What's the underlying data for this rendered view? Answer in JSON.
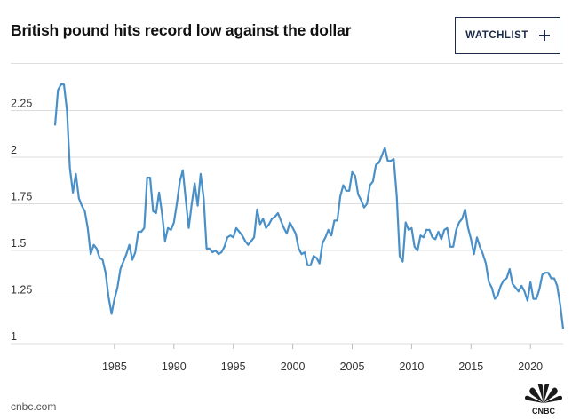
{
  "header": {
    "title": "British pound hits record low against the dollar",
    "watchlist_label": "WATCHLIST"
  },
  "footer": {
    "source": "cnbc.com",
    "logo_text": "CNBC"
  },
  "colors": {
    "line": "#4a90c8",
    "grid": "#dcdcdc",
    "button_border": "#1e2a4a"
  },
  "icons": [
    "plus-icon",
    "cnbc-peacock-logo"
  ],
  "chart_data": {
    "type": "line",
    "title": "British pound hits record low against the dollar",
    "xlabel": "",
    "ylabel": "",
    "xlim": [
      1980.0,
      2022.75
    ],
    "ylim": [
      1.0,
      2.5
    ],
    "y_ticks": [
      1,
      1.25,
      1.5,
      1.75,
      2,
      2.25
    ],
    "y_tick_labels": [
      "1",
      "1.25",
      "1.5",
      "1.75",
      "2",
      "2.25"
    ],
    "x_ticks": [
      1985,
      1990,
      1995,
      2000,
      2005,
      2010,
      2015,
      2020
    ],
    "x_tick_labels": [
      "1985",
      "1990",
      "1995",
      "2000",
      "2005",
      "2010",
      "2015",
      "2020"
    ],
    "grid": "horizontal",
    "series": [
      {
        "points": [
          [
            1980.0,
            2.17
          ],
          [
            1980.25,
            2.36
          ],
          [
            1980.5,
            2.39
          ],
          [
            1980.75,
            2.39
          ],
          [
            1981.0,
            2.25
          ],
          [
            1981.25,
            1.94
          ],
          [
            1981.5,
            1.81
          ],
          [
            1981.75,
            1.91
          ],
          [
            1982.0,
            1.78
          ],
          [
            1982.25,
            1.74
          ],
          [
            1982.5,
            1.71
          ],
          [
            1982.75,
            1.62
          ],
          [
            1983.0,
            1.48
          ],
          [
            1983.25,
            1.53
          ],
          [
            1983.5,
            1.51
          ],
          [
            1983.75,
            1.46
          ],
          [
            1984.0,
            1.45
          ],
          [
            1984.25,
            1.38
          ],
          [
            1984.5,
            1.25
          ],
          [
            1984.75,
            1.16
          ],
          [
            1985.0,
            1.24
          ],
          [
            1985.25,
            1.3
          ],
          [
            1985.5,
            1.4
          ],
          [
            1985.75,
            1.44
          ],
          [
            1986.0,
            1.48
          ],
          [
            1986.25,
            1.53
          ],
          [
            1986.5,
            1.45
          ],
          [
            1986.75,
            1.49
          ],
          [
            1987.0,
            1.6
          ],
          [
            1987.25,
            1.6
          ],
          [
            1987.5,
            1.62
          ],
          [
            1987.75,
            1.89
          ],
          [
            1988.0,
            1.89
          ],
          [
            1988.25,
            1.71
          ],
          [
            1988.5,
            1.7
          ],
          [
            1988.75,
            1.81
          ],
          [
            1989.0,
            1.7
          ],
          [
            1989.25,
            1.55
          ],
          [
            1989.5,
            1.62
          ],
          [
            1989.75,
            1.61
          ],
          [
            1990.0,
            1.65
          ],
          [
            1990.25,
            1.75
          ],
          [
            1990.5,
            1.87
          ],
          [
            1990.75,
            1.93
          ],
          [
            1991.0,
            1.77
          ],
          [
            1991.25,
            1.62
          ],
          [
            1991.5,
            1.75
          ],
          [
            1991.75,
            1.86
          ],
          [
            1992.0,
            1.74
          ],
          [
            1992.25,
            1.91
          ],
          [
            1992.5,
            1.78
          ],
          [
            1992.75,
            1.51
          ],
          [
            1993.0,
            1.51
          ],
          [
            1993.25,
            1.49
          ],
          [
            1993.5,
            1.5
          ],
          [
            1993.75,
            1.48
          ],
          [
            1994.0,
            1.49
          ],
          [
            1994.25,
            1.52
          ],
          [
            1994.5,
            1.57
          ],
          [
            1994.75,
            1.58
          ],
          [
            1995.0,
            1.57
          ],
          [
            1995.25,
            1.62
          ],
          [
            1995.5,
            1.6
          ],
          [
            1995.75,
            1.58
          ],
          [
            1996.0,
            1.55
          ],
          [
            1996.25,
            1.53
          ],
          [
            1996.5,
            1.55
          ],
          [
            1996.75,
            1.57
          ],
          [
            1997.0,
            1.72
          ],
          [
            1997.25,
            1.64
          ],
          [
            1997.5,
            1.67
          ],
          [
            1997.75,
            1.62
          ],
          [
            1998.0,
            1.64
          ],
          [
            1998.25,
            1.67
          ],
          [
            1998.5,
            1.68
          ],
          [
            1998.75,
            1.7
          ],
          [
            1999.0,
            1.66
          ],
          [
            1999.25,
            1.62
          ],
          [
            1999.5,
            1.59
          ],
          [
            1999.75,
            1.65
          ],
          [
            2000.0,
            1.62
          ],
          [
            2000.25,
            1.59
          ],
          [
            2000.5,
            1.51
          ],
          [
            2000.75,
            1.48
          ],
          [
            2001.0,
            1.49
          ],
          [
            2001.25,
            1.42
          ],
          [
            2001.5,
            1.42
          ],
          [
            2001.75,
            1.47
          ],
          [
            2002.0,
            1.46
          ],
          [
            2002.25,
            1.43
          ],
          [
            2002.5,
            1.54
          ],
          [
            2002.75,
            1.57
          ],
          [
            2003.0,
            1.61
          ],
          [
            2003.25,
            1.58
          ],
          [
            2003.5,
            1.66
          ],
          [
            2003.75,
            1.66
          ],
          [
            2004.0,
            1.79
          ],
          [
            2004.25,
            1.85
          ],
          [
            2004.5,
            1.82
          ],
          [
            2004.75,
            1.82
          ],
          [
            2005.0,
            1.92
          ],
          [
            2005.25,
            1.9
          ],
          [
            2005.5,
            1.8
          ],
          [
            2005.75,
            1.77
          ],
          [
            2006.0,
            1.73
          ],
          [
            2006.25,
            1.75
          ],
          [
            2006.5,
            1.85
          ],
          [
            2006.75,
            1.87
          ],
          [
            2007.0,
            1.96
          ],
          [
            2007.25,
            1.97
          ],
          [
            2007.5,
            2.01
          ],
          [
            2007.75,
            2.05
          ],
          [
            2008.0,
            1.98
          ],
          [
            2008.25,
            1.98
          ],
          [
            2008.5,
            1.99
          ],
          [
            2008.75,
            1.79
          ],
          [
            2009.0,
            1.47
          ],
          [
            2009.25,
            1.44
          ],
          [
            2009.5,
            1.65
          ],
          [
            2009.75,
            1.61
          ],
          [
            2010.0,
            1.62
          ],
          [
            2010.25,
            1.52
          ],
          [
            2010.5,
            1.5
          ],
          [
            2010.75,
            1.58
          ],
          [
            2011.0,
            1.57
          ],
          [
            2011.25,
            1.61
          ],
          [
            2011.5,
            1.61
          ],
          [
            2011.75,
            1.57
          ],
          [
            2012.0,
            1.56
          ],
          [
            2012.25,
            1.6
          ],
          [
            2012.5,
            1.56
          ],
          [
            2012.75,
            1.61
          ],
          [
            2013.0,
            1.62
          ],
          [
            2013.25,
            1.52
          ],
          [
            2013.5,
            1.52
          ],
          [
            2013.75,
            1.61
          ],
          [
            2014.0,
            1.65
          ],
          [
            2014.25,
            1.67
          ],
          [
            2014.5,
            1.72
          ],
          [
            2014.75,
            1.62
          ],
          [
            2015.0,
            1.56
          ],
          [
            2015.25,
            1.48
          ],
          [
            2015.5,
            1.57
          ],
          [
            2015.75,
            1.52
          ],
          [
            2016.0,
            1.48
          ],
          [
            2016.25,
            1.43
          ],
          [
            2016.5,
            1.33
          ],
          [
            2016.75,
            1.3
          ],
          [
            2017.0,
            1.24
          ],
          [
            2017.25,
            1.26
          ],
          [
            2017.5,
            1.31
          ],
          [
            2017.75,
            1.34
          ],
          [
            2018.0,
            1.35
          ],
          [
            2018.25,
            1.4
          ],
          [
            2018.5,
            1.32
          ],
          [
            2018.75,
            1.3
          ],
          [
            2019.0,
            1.28
          ],
          [
            2019.25,
            1.31
          ],
          [
            2019.5,
            1.28
          ],
          [
            2019.75,
            1.23
          ],
          [
            2020.0,
            1.33
          ],
          [
            2020.25,
            1.24
          ],
          [
            2020.5,
            1.24
          ],
          [
            2020.75,
            1.29
          ],
          [
            2021.0,
            1.37
          ],
          [
            2021.25,
            1.38
          ],
          [
            2021.5,
            1.38
          ],
          [
            2021.75,
            1.35
          ],
          [
            2022.0,
            1.35
          ],
          [
            2022.25,
            1.31
          ],
          [
            2022.5,
            1.21
          ],
          [
            2022.75,
            1.08
          ]
        ]
      }
    ]
  }
}
